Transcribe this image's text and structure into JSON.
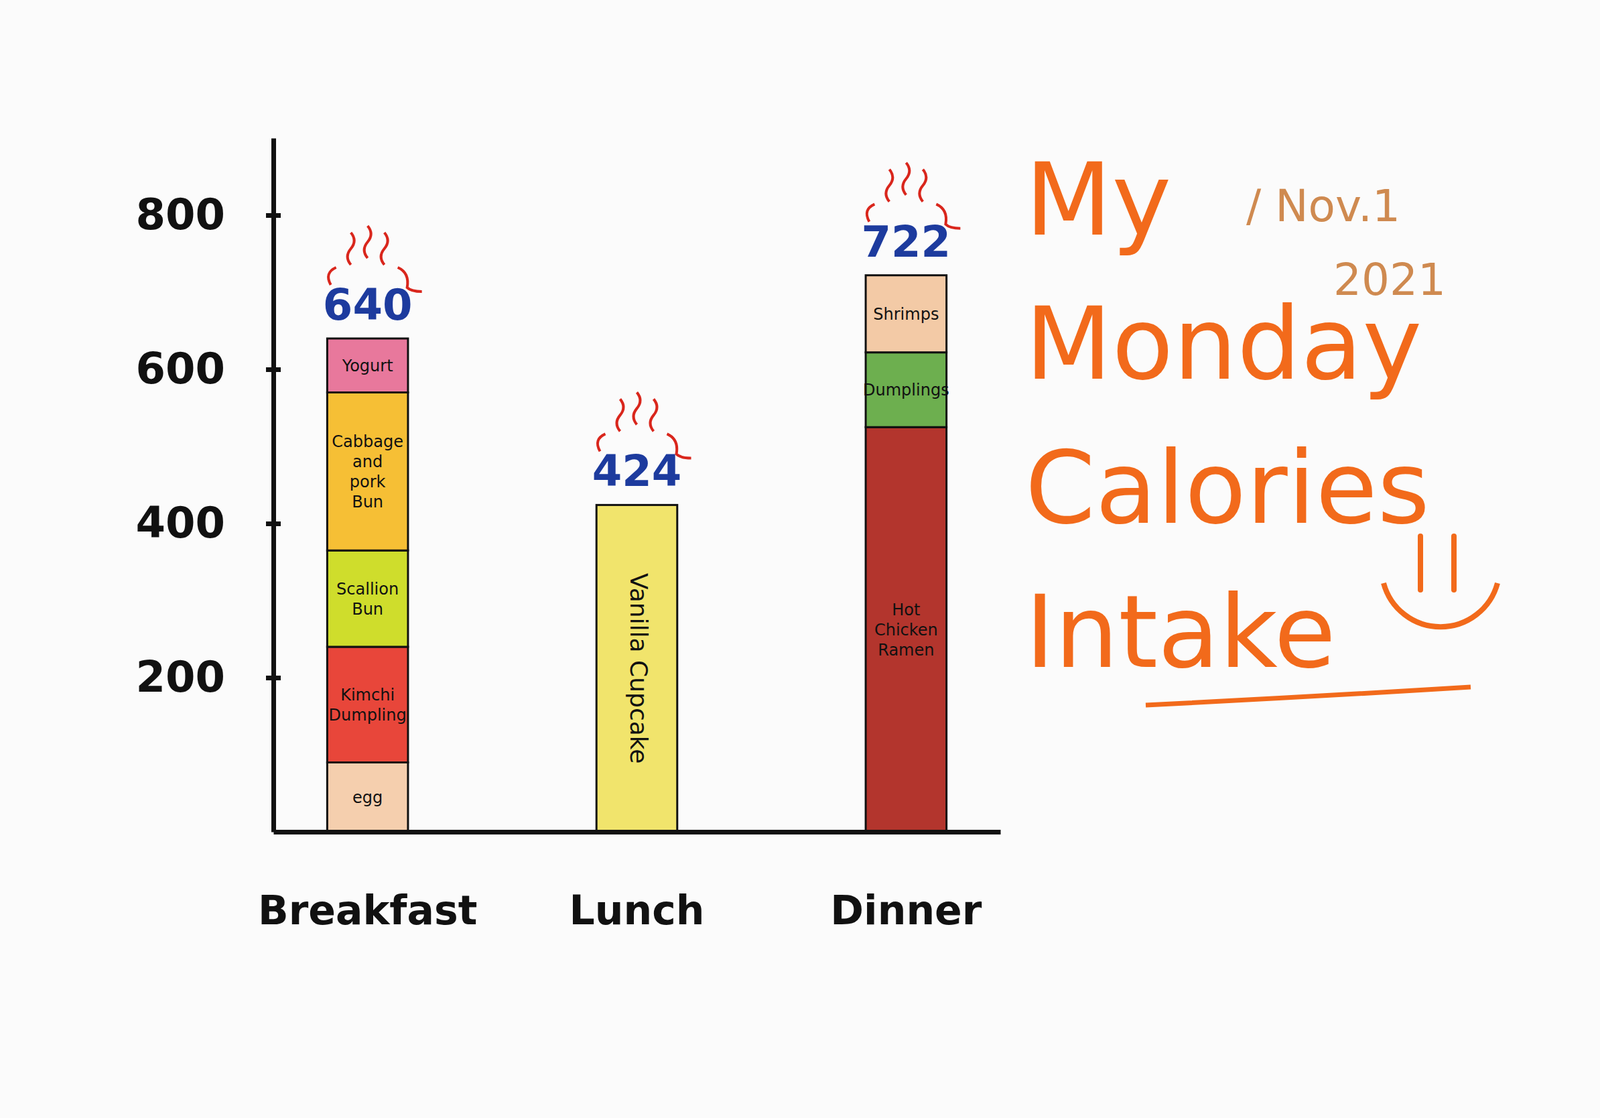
{
  "chart_data": {
    "type": "bar",
    "stacked": true,
    "title": "My Monday Calories Intake",
    "subtitle": "/ Nov.1 2021",
    "categories": [
      "Breakfast",
      "Lunch",
      "Dinner"
    ],
    "series": [
      {
        "name": "egg",
        "color": "#f5cfae",
        "values": [
          90,
          null,
          null
        ]
      },
      {
        "name": "Kimchi Dumpling",
        "color": "#e8463a",
        "values": [
          150,
          null,
          null
        ]
      },
      {
        "name": "Scallion Bun",
        "color": "#cfdd2c",
        "values": [
          125,
          null,
          null
        ]
      },
      {
        "name": "Cabbage and pork Bun",
        "color": "#f6bf35",
        "values": [
          205,
          null,
          null
        ]
      },
      {
        "name": "Yogurt",
        "color": "#e8789c",
        "values": [
          70,
          null,
          null
        ]
      },
      {
        "name": "Vanilla Cupcake",
        "color": "#f1e46c",
        "values": [
          null,
          424,
          null
        ]
      },
      {
        "name": "Hot Chicken Ramen",
        "color": "#b3352d",
        "values": [
          null,
          null,
          525
        ]
      },
      {
        "name": "Dumplings",
        "color": "#6daf4f",
        "values": [
          null,
          null,
          97
        ]
      },
      {
        "name": "Shrimps",
        "color": "#f3caa6",
        "values": [
          null,
          null,
          100
        ]
      }
    ],
    "totals": [
      640,
      424,
      722
    ],
    "ylim": [
      0,
      900
    ],
    "yticks": [
      200,
      400,
      600,
      800
    ]
  }
}
